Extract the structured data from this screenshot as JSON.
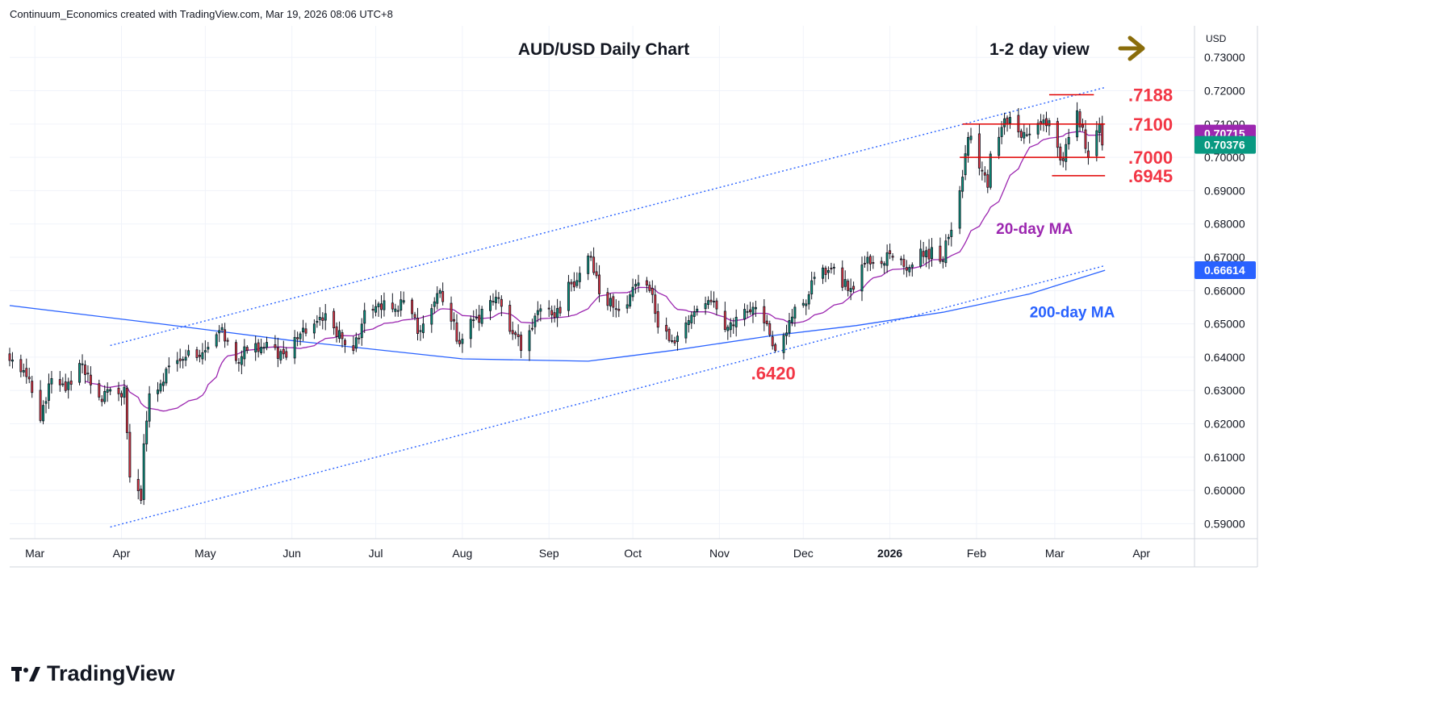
{
  "header": {
    "attribution": "Continuum_Economics created with TradingView.com, Mar 19, 2026 08:06 UTC+8"
  },
  "brand": {
    "name": "TradingView",
    "logo_icon": "tradingview-logo-icon"
  },
  "colors": {
    "up": "#089981",
    "down": "#f23645",
    "ma20": "#9c27b0",
    "ma200": "#2962ff",
    "channel": "#2962ff",
    "level": "#e00000",
    "label_red": "#f23645",
    "arrow": "#8a6d0b",
    "grid": "#f0f3fa",
    "axis_text": "#131722"
  },
  "chart_data": {
    "type": "candlestick",
    "title": "AUD/USD Daily Chart",
    "view_label": "1-2 day view",
    "view_icon": "arrow-right-icon",
    "currency_label": "USD",
    "ylim": [
      0.5855,
      0.7395
    ],
    "y_ticks": [
      "0.73000",
      "0.72000",
      "0.71000",
      "0.70000",
      "0.69000",
      "0.68000",
      "0.67000",
      "0.66000",
      "0.65000",
      "0.64000",
      "0.63000",
      "0.62000",
      "0.61000",
      "0.60000",
      "0.59000"
    ],
    "y_tick_values": [
      0.73,
      0.72,
      0.71,
      0.7,
      0.69,
      0.68,
      0.67,
      0.66,
      0.65,
      0.64,
      0.63,
      0.62,
      0.61,
      0.6,
      0.59
    ],
    "x_ticks": [
      "Mar",
      "Apr",
      "May",
      "Jun",
      "Jul",
      "Aug",
      "Sep",
      "Oct",
      "Nov",
      "Dec",
      "2026",
      "Feb",
      "Mar",
      "Apr"
    ],
    "x_tick_dates": [
      "2025-03-01",
      "2025-04-01",
      "2025-05-01",
      "2025-06-01",
      "2025-07-01",
      "2025-08-01",
      "2025-09-01",
      "2025-10-01",
      "2025-11-01",
      "2025-12-01",
      "2026-01-01",
      "2026-02-01",
      "2026-03-01",
      "2026-04-01"
    ],
    "x_range": [
      "2025-02-20",
      "2026-04-20"
    ],
    "anchor_closes": [
      [
        "2025-02-20",
        0.639
      ],
      [
        "2025-02-25",
        0.636
      ],
      [
        "2025-03-03",
        0.621
      ],
      [
        "2025-03-06",
        0.632
      ],
      [
        "2025-03-12",
        0.63
      ],
      [
        "2025-03-18",
        0.638
      ],
      [
        "2025-03-24",
        0.628
      ],
      [
        "2025-03-31",
        0.629
      ],
      [
        "2025-04-02",
        0.631
      ],
      [
        "2025-04-04",
        0.604
      ],
      [
        "2025-04-08",
        0.597
      ],
      [
        "2025-04-09",
        0.614
      ],
      [
        "2025-04-11",
        0.629
      ],
      [
        "2025-04-15",
        0.632
      ],
      [
        "2025-04-21",
        0.639
      ],
      [
        "2025-04-24",
        0.64
      ],
      [
        "2025-05-02",
        0.643
      ],
      [
        "2025-05-06",
        0.648
      ],
      [
        "2025-05-12",
        0.639
      ],
      [
        "2025-05-16",
        0.642
      ],
      [
        "2025-05-22",
        0.643
      ],
      [
        "2025-05-29",
        0.641
      ],
      [
        "2025-06-04",
        0.647
      ],
      [
        "2025-06-11",
        0.652
      ],
      [
        "2025-06-18",
        0.648
      ],
      [
        "2025-06-23",
        0.642
      ],
      [
        "2025-06-27",
        0.654
      ],
      [
        "2025-07-02",
        0.656
      ],
      [
        "2025-07-09",
        0.654
      ],
      [
        "2025-07-11",
        0.657
      ],
      [
        "2025-07-17",
        0.648
      ],
      [
        "2025-07-24",
        0.66
      ],
      [
        "2025-07-31",
        0.644
      ],
      [
        "2025-08-06",
        0.652
      ],
      [
        "2025-08-13",
        0.658
      ],
      [
        "2025-08-19",
        0.647
      ],
      [
        "2025-08-22",
        0.642
      ],
      [
        "2025-08-28",
        0.654
      ],
      [
        "2025-09-03",
        0.652
      ],
      [
        "2025-09-09",
        0.662
      ],
      [
        "2025-09-16",
        0.67
      ],
      [
        "2025-09-19",
        0.659
      ],
      [
        "2025-09-26",
        0.654
      ],
      [
        "2025-10-01",
        0.661
      ],
      [
        "2025-10-07",
        0.66
      ],
      [
        "2025-10-10",
        0.649
      ],
      [
        "2025-10-14",
        0.645
      ],
      [
        "2025-10-21",
        0.651
      ],
      [
        "2025-10-28",
        0.657
      ],
      [
        "2025-11-04",
        0.649
      ],
      [
        "2025-11-07",
        0.652
      ],
      [
        "2025-11-13",
        0.655
      ],
      [
        "2025-11-18",
        0.65
      ],
      [
        "2025-11-21",
        0.642
      ],
      [
        "2025-11-26",
        0.651
      ],
      [
        "2025-12-02",
        0.656
      ],
      [
        "2025-12-05",
        0.664
      ],
      [
        "2025-12-12",
        0.667
      ],
      [
        "2025-12-17",
        0.66
      ],
      [
        "2025-12-24",
        0.67
      ],
      [
        "2026-01-02",
        0.67
      ],
      [
        "2026-01-08",
        0.667
      ],
      [
        "2026-01-14",
        0.672
      ],
      [
        "2026-01-20",
        0.669
      ],
      [
        "2026-01-22",
        0.676
      ],
      [
        "2026-01-26",
        0.69
      ],
      [
        "2026-01-29",
        0.706
      ],
      [
        "2026-02-03",
        0.696
      ],
      [
        "2026-02-05",
        0.691
      ],
      [
        "2026-02-06",
        0.701
      ],
      [
        "2026-02-10",
        0.709
      ],
      [
        "2026-02-13",
        0.712
      ],
      [
        "2026-02-17",
        0.706
      ],
      [
        "2026-02-20",
        0.707
      ],
      [
        "2026-02-24",
        0.71
      ],
      [
        "2026-02-27",
        0.711
      ],
      [
        "2026-03-02",
        0.703
      ],
      [
        "2026-03-04",
        0.699
      ],
      [
        "2026-03-06",
        0.706
      ],
      [
        "2026-03-09",
        0.714
      ],
      [
        "2026-03-11",
        0.709
      ],
      [
        "2026-03-13",
        0.7
      ],
      [
        "2026-03-16",
        0.708
      ],
      [
        "2026-03-17",
        0.71
      ],
      [
        "2026-03-18",
        0.7037
      ]
    ],
    "ma200_points": [
      [
        "2025-02-20",
        0.6555
      ],
      [
        "2025-04-15",
        0.65
      ],
      [
        "2025-06-01",
        0.645
      ],
      [
        "2025-08-01",
        0.6395
      ],
      [
        "2025-09-15",
        0.6388
      ],
      [
        "2025-10-15",
        0.642
      ],
      [
        "2025-11-20",
        0.6465
      ],
      [
        "2025-12-20",
        0.6495
      ],
      [
        "2026-01-20",
        0.6535
      ],
      [
        "2026-02-20",
        0.659
      ],
      [
        "2026-03-19",
        0.6661
      ]
    ],
    "channel_upper": [
      [
        "2025-03-28",
        0.6435
      ],
      [
        "2026-03-19",
        0.721
      ]
    ],
    "channel_lower": [
      [
        "2025-03-28",
        0.589
      ],
      [
        "2026-03-19",
        0.6675
      ]
    ],
    "levels": [
      {
        "label": ".7188",
        "value": 0.7188,
        "from": "2026-02-27",
        "to": "2026-03-15"
      },
      {
        "label": ".7100",
        "value": 0.71,
        "from": "2026-01-27",
        "to": "2026-03-19"
      },
      {
        "label": ".7000",
        "value": 0.7,
        "from": "2026-01-26",
        "to": "2026-03-19"
      },
      {
        "label": ".6945",
        "value": 0.6945,
        "from": "2026-02-28",
        "to": "2026-03-19"
      }
    ],
    "low_label": {
      "label": ".6420",
      "value": 0.642,
      "date": "2025-11-21"
    },
    "series": [
      {
        "name": "20-day MA",
        "last_value": "0.70715"
      },
      {
        "name": "200-day MA",
        "last_value": "0.66614"
      }
    ],
    "last_price": "0.70376",
    "ma_label_anchors": {
      "ma20": [
        "2026-02-08",
        0.677
      ],
      "ma200": [
        "2026-02-20",
        0.652
      ]
    }
  }
}
